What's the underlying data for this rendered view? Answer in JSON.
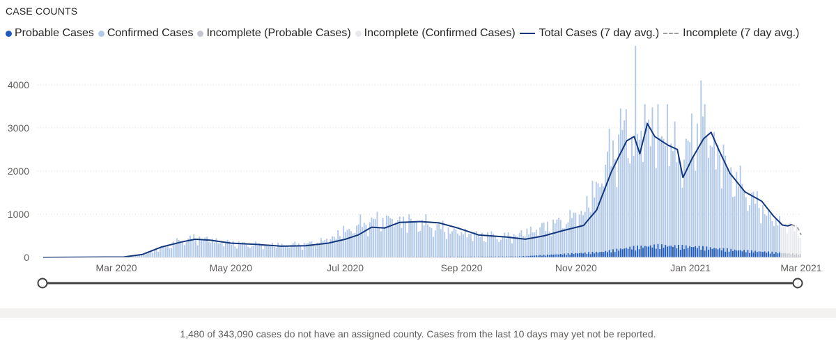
{
  "title": "CASE COUNTS",
  "legend": [
    {
      "label": "Probable Cases",
      "kind": "dot",
      "color": "#1f5bc2"
    },
    {
      "label": "Confirmed Cases",
      "kind": "dot",
      "color": "#b3c9ea"
    },
    {
      "label": "Incomplete (Probable Cases)",
      "kind": "dot",
      "color": "#c3c6cf"
    },
    {
      "label": "Incomplete (Confirmed Cases)",
      "kind": "dot",
      "color": "#e8e9ed"
    },
    {
      "label": "Total Cases (7 day avg.)",
      "kind": "line",
      "color": "#13377c"
    },
    {
      "label": "Incomplete (7 day avg.)",
      "kind": "dash",
      "color": "#a0a0a0"
    }
  ],
  "footnote": "1,480 of 343,090 cases do not have an assigned county. Cases from the last 10 days may yet not be reported.",
  "colors": {
    "probable": "#1f5bc2",
    "confirmed": "#b3c9ea",
    "incomplete_probable": "#c3c6cf",
    "incomplete_confirmed": "#e8e9ed",
    "avg_line": "#13377c",
    "incomplete_avg": "#a0a0a0",
    "slider": "#404040",
    "grid": "#dcdcdc"
  },
  "chart_data": {
    "type": "bar",
    "stacked": true,
    "x_axis": "date",
    "x_start": "2020-01-22",
    "x_end": "2021-03-01",
    "incomplete_from": "2021-02-19",
    "ylim": [
      0,
      4900
    ],
    "yticks": [
      0,
      1000,
      2000,
      3000,
      4000
    ],
    "xticks": [
      {
        "label": "Mar 2020",
        "date": "2020-03-01"
      },
      {
        "label": "May 2020",
        "date": "2020-05-01"
      },
      {
        "label": "Jul 2020",
        "date": "2020-07-01"
      },
      {
        "label": "Sep 2020",
        "date": "2020-09-01"
      },
      {
        "label": "Nov 2020",
        "date": "2020-11-01"
      },
      {
        "label": "Jan 2021",
        "date": "2021-01-01"
      },
      {
        "label": "Mar 2021",
        "date": "2021-03-01"
      }
    ],
    "grid": "horizontal dotted",
    "legend_position": "top-left",
    "confirmed_keypoints": [
      [
        "2020-01-22",
        0
      ],
      [
        "2020-03-05",
        5
      ],
      [
        "2020-03-15",
        60
      ],
      [
        "2020-03-25",
        220
      ],
      [
        "2020-04-05",
        400
      ],
      [
        "2020-04-15",
        450
      ],
      [
        "2020-04-25",
        360
      ],
      [
        "2020-05-10",
        290
      ],
      [
        "2020-05-25",
        280
      ],
      [
        "2020-06-10",
        300
      ],
      [
        "2020-06-20",
        380
      ],
      [
        "2020-07-01",
        600
      ],
      [
        "2020-07-12",
        800
      ],
      [
        "2020-07-25",
        880
      ],
      [
        "2020-08-10",
        780
      ],
      [
        "2020-08-25",
        620
      ],
      [
        "2020-09-10",
        500
      ],
      [
        "2020-09-25",
        450
      ],
      [
        "2020-10-10",
        600
      ],
      [
        "2020-10-25",
        750
      ],
      [
        "2020-11-05",
        950
      ],
      [
        "2020-11-12",
        1500
      ],
      [
        "2020-11-20",
        2300
      ],
      [
        "2020-11-28",
        2700
      ],
      [
        "2020-12-05",
        2450
      ],
      [
        "2020-12-10",
        2850
      ],
      [
        "2020-12-18",
        2450
      ],
      [
        "2020-12-25",
        2100
      ],
      [
        "2020-12-30",
        2200
      ],
      [
        "2021-01-07",
        2800
      ],
      [
        "2021-01-15",
        2300
      ],
      [
        "2021-01-25",
        1650
      ],
      [
        "2021-02-05",
        1150
      ],
      [
        "2021-02-15",
        750
      ],
      [
        "2021-03-01",
        560
      ]
    ],
    "probable_keypoints": [
      [
        "2020-01-22",
        0
      ],
      [
        "2020-06-01",
        2
      ],
      [
        "2020-08-01",
        10
      ],
      [
        "2020-10-01",
        20
      ],
      [
        "2020-11-15",
        120
      ],
      [
        "2020-12-01",
        220
      ],
      [
        "2020-12-15",
        260
      ],
      [
        "2021-01-05",
        230
      ],
      [
        "2021-01-25",
        160
      ],
      [
        "2021-02-15",
        110
      ],
      [
        "2021-03-01",
        70
      ]
    ],
    "spikes": [
      {
        "date": "2020-12-03",
        "value": 4900
      },
      {
        "date": "2021-01-07",
        "value": 4100
      },
      {
        "date": "2020-12-08",
        "value": 3550
      },
      {
        "date": "2020-12-20",
        "value": 3550
      },
      {
        "date": "2021-01-09",
        "value": 3550
      },
      {
        "date": "2020-11-25",
        "value": 3450
      }
    ],
    "series": [
      {
        "name": "Total Cases (7 day avg.)",
        "type": "line",
        "points": [
          [
            "2020-01-22",
            0
          ],
          [
            "2020-03-05",
            10
          ],
          [
            "2020-03-15",
            70
          ],
          [
            "2020-03-25",
            240
          ],
          [
            "2020-04-05",
            360
          ],
          [
            "2020-04-12",
            420
          ],
          [
            "2020-04-20",
            400
          ],
          [
            "2020-05-01",
            330
          ],
          [
            "2020-05-15",
            300
          ],
          [
            "2020-05-28",
            260
          ],
          [
            "2020-06-10",
            270
          ],
          [
            "2020-06-22",
            330
          ],
          [
            "2020-07-01",
            420
          ],
          [
            "2020-07-08",
            520
          ],
          [
            "2020-07-15",
            700
          ],
          [
            "2020-07-22",
            680
          ],
          [
            "2020-07-30",
            810
          ],
          [
            "2020-08-10",
            830
          ],
          [
            "2020-08-20",
            800
          ],
          [
            "2020-08-30",
            680
          ],
          [
            "2020-09-10",
            520
          ],
          [
            "2020-09-25",
            470
          ],
          [
            "2020-10-05",
            420
          ],
          [
            "2020-10-15",
            500
          ],
          [
            "2020-10-25",
            620
          ],
          [
            "2020-11-05",
            740
          ],
          [
            "2020-11-12",
            1100
          ],
          [
            "2020-11-20",
            2000
          ],
          [
            "2020-11-28",
            2700
          ],
          [
            "2020-12-02",
            2800
          ],
          [
            "2020-12-05",
            2400
          ],
          [
            "2020-12-09",
            3100
          ],
          [
            "2020-12-13",
            2800
          ],
          [
            "2020-12-20",
            2600
          ],
          [
            "2020-12-25",
            2500
          ],
          [
            "2020-12-28",
            1850
          ],
          [
            "2021-01-02",
            2300
          ],
          [
            "2021-01-08",
            2750
          ],
          [
            "2021-01-12",
            2900
          ],
          [
            "2021-01-16",
            2500
          ],
          [
            "2021-01-22",
            1950
          ],
          [
            "2021-01-30",
            1520
          ],
          [
            "2021-02-08",
            1300
          ],
          [
            "2021-02-14",
            970
          ],
          [
            "2021-02-19",
            750
          ],
          [
            "2021-02-22",
            730
          ],
          [
            "2021-02-24",
            760
          ]
        ]
      },
      {
        "name": "Incomplete (7 day avg.)",
        "type": "line",
        "style": "dashed",
        "points": [
          [
            "2021-02-24",
            760
          ],
          [
            "2021-02-27",
            700
          ],
          [
            "2021-03-01",
            520
          ]
        ]
      }
    ]
  }
}
